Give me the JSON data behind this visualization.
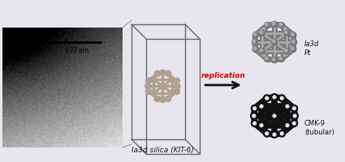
{
  "background_color": "#e8e5ec",
  "scale_bar_text": "100 nm",
  "kit6_label": "Ia3d silica (KIT-6)",
  "replication_text": "replication",
  "replication_color": "#cc0000",
  "arrow_color": "#111111",
  "cmk9_label": "CMK-9\n(tubular)",
  "pt_label": "Ia3d\nPt",
  "label_color": "#111111",
  "cube_edge_color": "#666666",
  "cmk9_color": "#111111",
  "pt_color_dark": "#777777",
  "pt_color_light": "#aaaaaa",
  "tube_color": "#b0a090"
}
